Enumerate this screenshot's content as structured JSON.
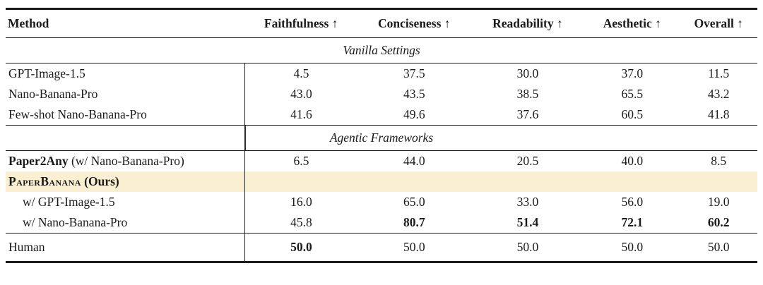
{
  "colors": {
    "highlight": "#faf0d1",
    "text": "#1b1b1b",
    "rule": "#1a1a1a",
    "vline": "#2b2b2b"
  },
  "table": {
    "columns": [
      "Method",
      "Faithfulness ↑",
      "Conciseness ↑",
      "Readability ↑",
      "Aesthetic ↑",
      "Overall ↑"
    ],
    "rows": [
      {
        "type": "section",
        "label": "Vanilla Settings",
        "vline": false,
        "rule_below": true
      },
      {
        "type": "data",
        "method": [
          {
            "text": "GPT-Image-1.5"
          }
        ],
        "values": [
          "4.5",
          "37.5",
          "30.0",
          "37.0",
          "11.5"
        ]
      },
      {
        "type": "data",
        "method": [
          {
            "text": "Nano-Banana-Pro"
          }
        ],
        "values": [
          "43.0",
          "43.5",
          "38.5",
          "65.5",
          "43.2"
        ]
      },
      {
        "type": "data",
        "method": [
          {
            "text": "Few-shot Nano-Banana-Pro"
          }
        ],
        "values": [
          "41.6",
          "49.6",
          "37.6",
          "60.5",
          "41.8"
        ]
      },
      {
        "type": "section",
        "label": "Agentic Frameworks",
        "vline": true,
        "rule_above": true,
        "rule_below": true
      },
      {
        "type": "data",
        "method": [
          {
            "text": "Paper2Any",
            "bold": true
          },
          {
            "text": " (w/ Nano-Banana-Pro)"
          }
        ],
        "values": [
          "6.5",
          "44.0",
          "20.5",
          "40.0",
          "8.5"
        ]
      },
      {
        "type": "data",
        "highlight": true,
        "method": [
          {
            "text": "PaperBanana",
            "bold": true,
            "smallcaps": true
          },
          {
            "text": " (Ours)",
            "bold": true
          }
        ],
        "values": [
          "",
          "",
          "",
          "",
          ""
        ]
      },
      {
        "type": "data",
        "indent": true,
        "method": [
          {
            "text": "w/ GPT-Image-1.5"
          }
        ],
        "values": [
          "16.0",
          "65.0",
          "33.0",
          "56.0",
          "19.0"
        ]
      },
      {
        "type": "data",
        "indent": true,
        "method": [
          {
            "text": "w/ Nano-Banana-Pro"
          }
        ],
        "values": [
          "45.8",
          "80.7",
          "51.4",
          "72.1",
          "60.2"
        ],
        "bold_values": [
          false,
          true,
          true,
          true,
          true
        ]
      },
      {
        "type": "data",
        "tall": true,
        "rule_above": true,
        "thick_rule_below": true,
        "method": [
          {
            "text": "Human"
          }
        ],
        "values": [
          "50.0",
          "50.0",
          "50.0",
          "50.0",
          "50.0"
        ],
        "bold_values": [
          true,
          false,
          false,
          false,
          false
        ]
      }
    ]
  }
}
